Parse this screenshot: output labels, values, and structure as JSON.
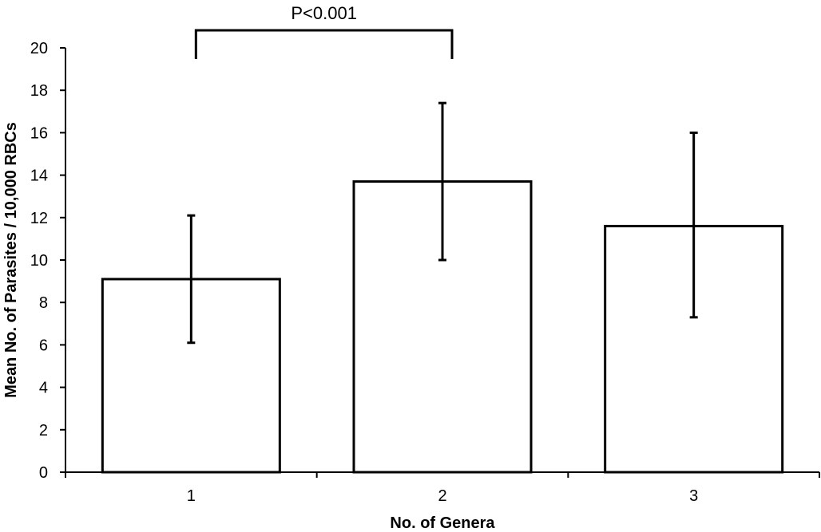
{
  "chart_data": {
    "type": "bar",
    "title": "",
    "xlabel": "No. of Genera",
    "ylabel": "Mean No. of Parasites / 10,000 RBCs",
    "categories": [
      "1",
      "2",
      "3"
    ],
    "values": [
      9.1,
      13.7,
      11.6
    ],
    "error_bars": [
      {
        "low": 6.1,
        "high": 12.1
      },
      {
        "low": 10.0,
        "high": 17.4
      },
      {
        "low": 7.3,
        "high": 16.0
      }
    ],
    "ylim": [
      0,
      20
    ],
    "yticks": [
      0,
      2,
      4,
      6,
      8,
      10,
      12,
      14,
      16,
      18,
      20
    ],
    "grid": false,
    "legend": "none",
    "annotations": [
      {
        "text": "P<0.001",
        "from_category": "1",
        "to_category": "2"
      }
    ],
    "colors": {
      "bar_fill": "#ffffff",
      "bar_stroke": "#000000",
      "axis": "#000000"
    }
  }
}
